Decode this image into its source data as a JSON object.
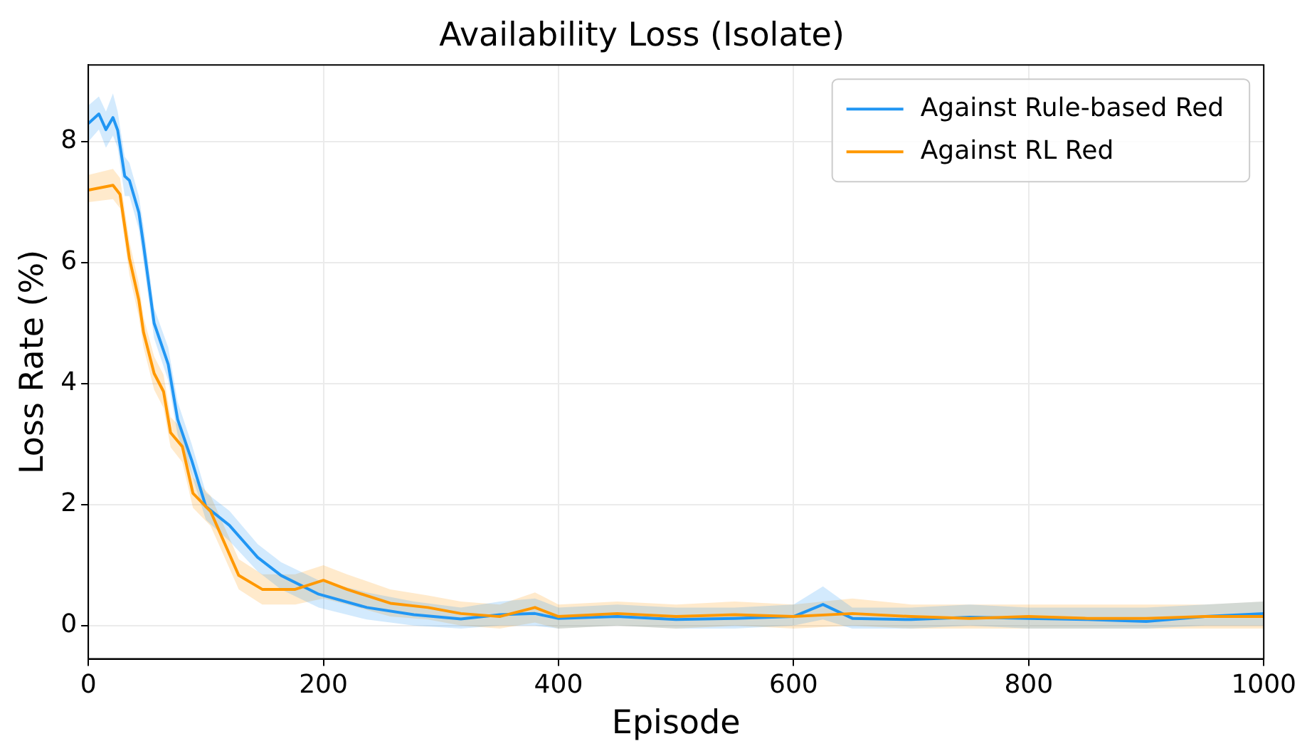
{
  "chart_data": {
    "type": "line",
    "title": "Availability Loss (Isolate)",
    "xlabel": "Episode",
    "ylabel": "Loss Rate (%)",
    "xlim": [
      0,
      1000
    ],
    "xticks": [
      0,
      200,
      400,
      600,
      800,
      1000
    ],
    "ylim": [
      -0.55,
      9.27
    ],
    "yticks": [
      0,
      2,
      4,
      6,
      8
    ],
    "grid": true,
    "legend": "top right",
    "marker": "none",
    "line_style": "solid",
    "series": [
      {
        "name": "Against Rule-based Red",
        "color": "#2196f3",
        "x": [
          0,
          9,
          15,
          21,
          25,
          31,
          35,
          43,
          47,
          56,
          68,
          76,
          88,
          100,
          120,
          144,
          164,
          196,
          237,
          277,
          317,
          350,
          380,
          400,
          450,
          500,
          550,
          600,
          625,
          650,
          700,
          750,
          800,
          850,
          900,
          950,
          1000
        ],
        "values": [
          8.3,
          8.46,
          8.2,
          8.4,
          8.19,
          7.43,
          7.36,
          6.83,
          6.29,
          5.0,
          4.32,
          3.41,
          2.73,
          1.97,
          1.66,
          1.13,
          0.83,
          0.52,
          0.3,
          0.18,
          0.11,
          0.18,
          0.2,
          0.12,
          0.15,
          0.1,
          0.12,
          0.15,
          0.35,
          0.12,
          0.1,
          0.14,
          0.12,
          0.1,
          0.07,
          0.15,
          0.2
        ],
        "lower": [
          8.0,
          8.2,
          7.9,
          8.1,
          7.9,
          7.1,
          7.1,
          6.55,
          6.0,
          4.75,
          4.05,
          3.15,
          2.5,
          1.75,
          1.4,
          0.9,
          0.6,
          0.3,
          0.1,
          0.0,
          -0.05,
          0.0,
          0.0,
          -0.05,
          0.0,
          -0.05,
          -0.05,
          0.0,
          0.1,
          -0.05,
          -0.05,
          0.0,
          -0.05,
          -0.05,
          -0.05,
          0.0,
          0.0
        ],
        "upper": [
          8.6,
          8.75,
          8.5,
          8.8,
          8.5,
          7.75,
          7.65,
          7.1,
          6.6,
          5.25,
          4.6,
          3.7,
          3.0,
          2.2,
          1.9,
          1.35,
          1.05,
          0.75,
          0.55,
          0.4,
          0.3,
          0.4,
          0.45,
          0.3,
          0.35,
          0.3,
          0.3,
          0.35,
          0.65,
          0.3,
          0.3,
          0.35,
          0.3,
          0.3,
          0.3,
          0.35,
          0.4
        ]
      },
      {
        "name": "Against RL Red",
        "color": "#ff9800",
        "x": [
          0,
          21,
          27,
          35,
          43,
          47,
          56,
          64,
          70,
          80,
          89,
          104,
          128,
          148,
          176,
          200,
          220,
          257,
          289,
          317,
          350,
          380,
          400,
          450,
          500,
          550,
          600,
          650,
          700,
          750,
          800,
          850,
          900,
          950,
          1000
        ],
        "values": [
          7.2,
          7.28,
          7.13,
          6.07,
          5.38,
          4.85,
          4.17,
          3.87,
          3.19,
          2.96,
          2.19,
          1.89,
          0.83,
          0.6,
          0.6,
          0.75,
          0.6,
          0.37,
          0.3,
          0.2,
          0.15,
          0.3,
          0.15,
          0.2,
          0.15,
          0.18,
          0.15,
          0.2,
          0.15,
          0.12,
          0.15,
          0.12,
          0.12,
          0.15,
          0.15
        ],
        "lower": [
          7.0,
          7.05,
          6.9,
          5.8,
          5.1,
          4.6,
          3.9,
          3.6,
          2.95,
          2.7,
          1.95,
          1.65,
          0.6,
          0.35,
          0.35,
          0.45,
          0.35,
          0.15,
          0.1,
          0.0,
          -0.05,
          0.05,
          -0.05,
          0.0,
          -0.05,
          0.0,
          -0.05,
          0.0,
          -0.05,
          -0.05,
          -0.05,
          -0.05,
          -0.05,
          -0.05,
          -0.05
        ],
        "upper": [
          7.45,
          7.55,
          7.4,
          6.35,
          5.65,
          5.1,
          4.45,
          4.15,
          3.45,
          3.25,
          2.45,
          2.15,
          1.1,
          0.85,
          0.85,
          1.0,
          0.85,
          0.6,
          0.5,
          0.4,
          0.35,
          0.55,
          0.35,
          0.4,
          0.35,
          0.4,
          0.35,
          0.45,
          0.35,
          0.35,
          0.35,
          0.35,
          0.35,
          0.35,
          0.4
        ]
      }
    ]
  }
}
